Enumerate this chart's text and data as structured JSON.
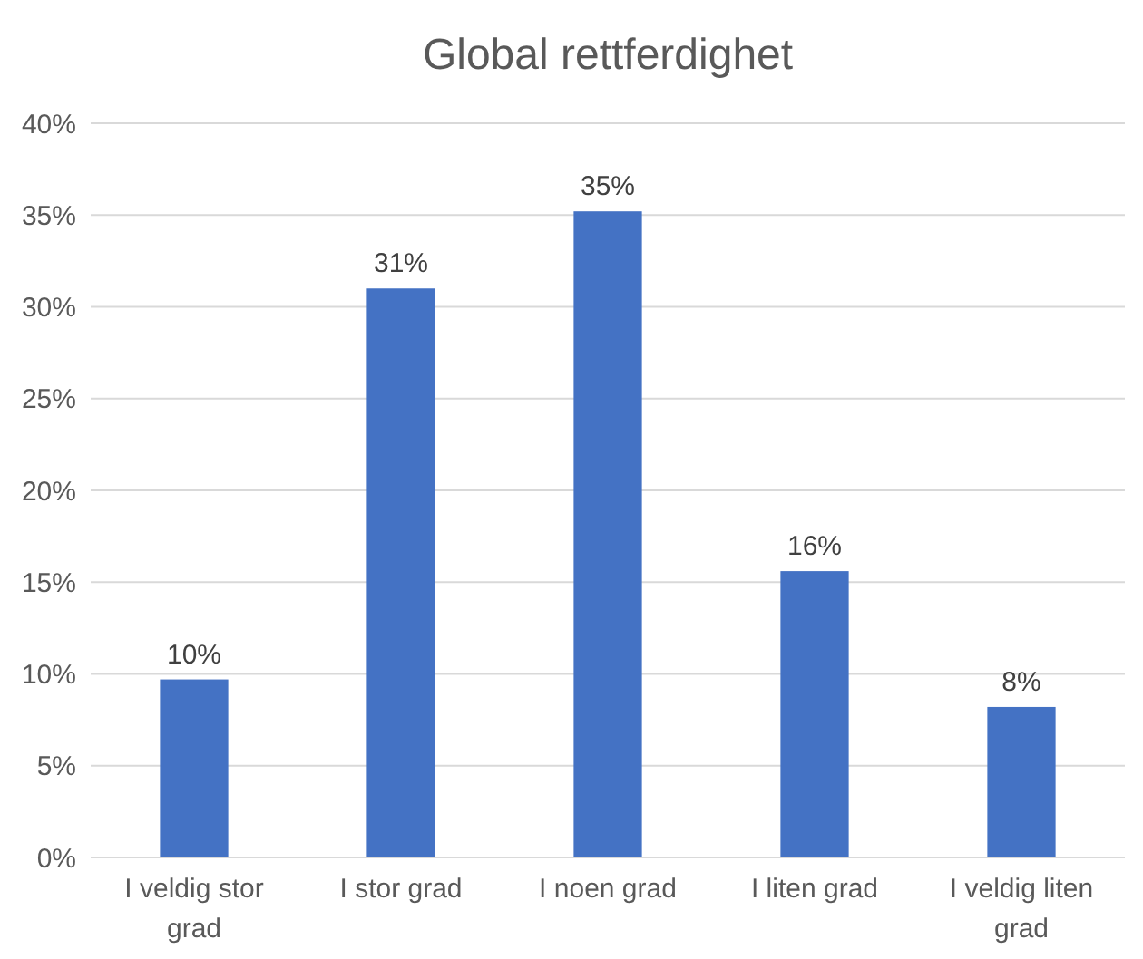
{
  "chart_data": {
    "type": "bar",
    "title": "Global rettferdighet",
    "categories": [
      "I veldig stor grad",
      "I stor grad",
      "I noen grad",
      "I liten grad",
      "I veldig liten grad"
    ],
    "values": [
      9.7,
      31,
      35.2,
      15.6,
      8.2
    ],
    "value_labels": [
      "10%",
      "31%",
      "35%",
      "16%",
      "8%"
    ],
    "color": "#4472c4",
    "ylim": [
      0,
      40
    ],
    "yticks": [
      {
        "value": 0,
        "label": "0%"
      },
      {
        "value": 5,
        "label": "5%"
      },
      {
        "value": 10,
        "label": "10%"
      },
      {
        "value": 15,
        "label": "15%"
      },
      {
        "value": 20,
        "label": "20%"
      },
      {
        "value": 25,
        "label": "25%"
      },
      {
        "value": 30,
        "label": "30%"
      },
      {
        "value": 35,
        "label": "35%"
      },
      {
        "value": 40,
        "label": "40%"
      }
    ],
    "grid": "y"
  }
}
